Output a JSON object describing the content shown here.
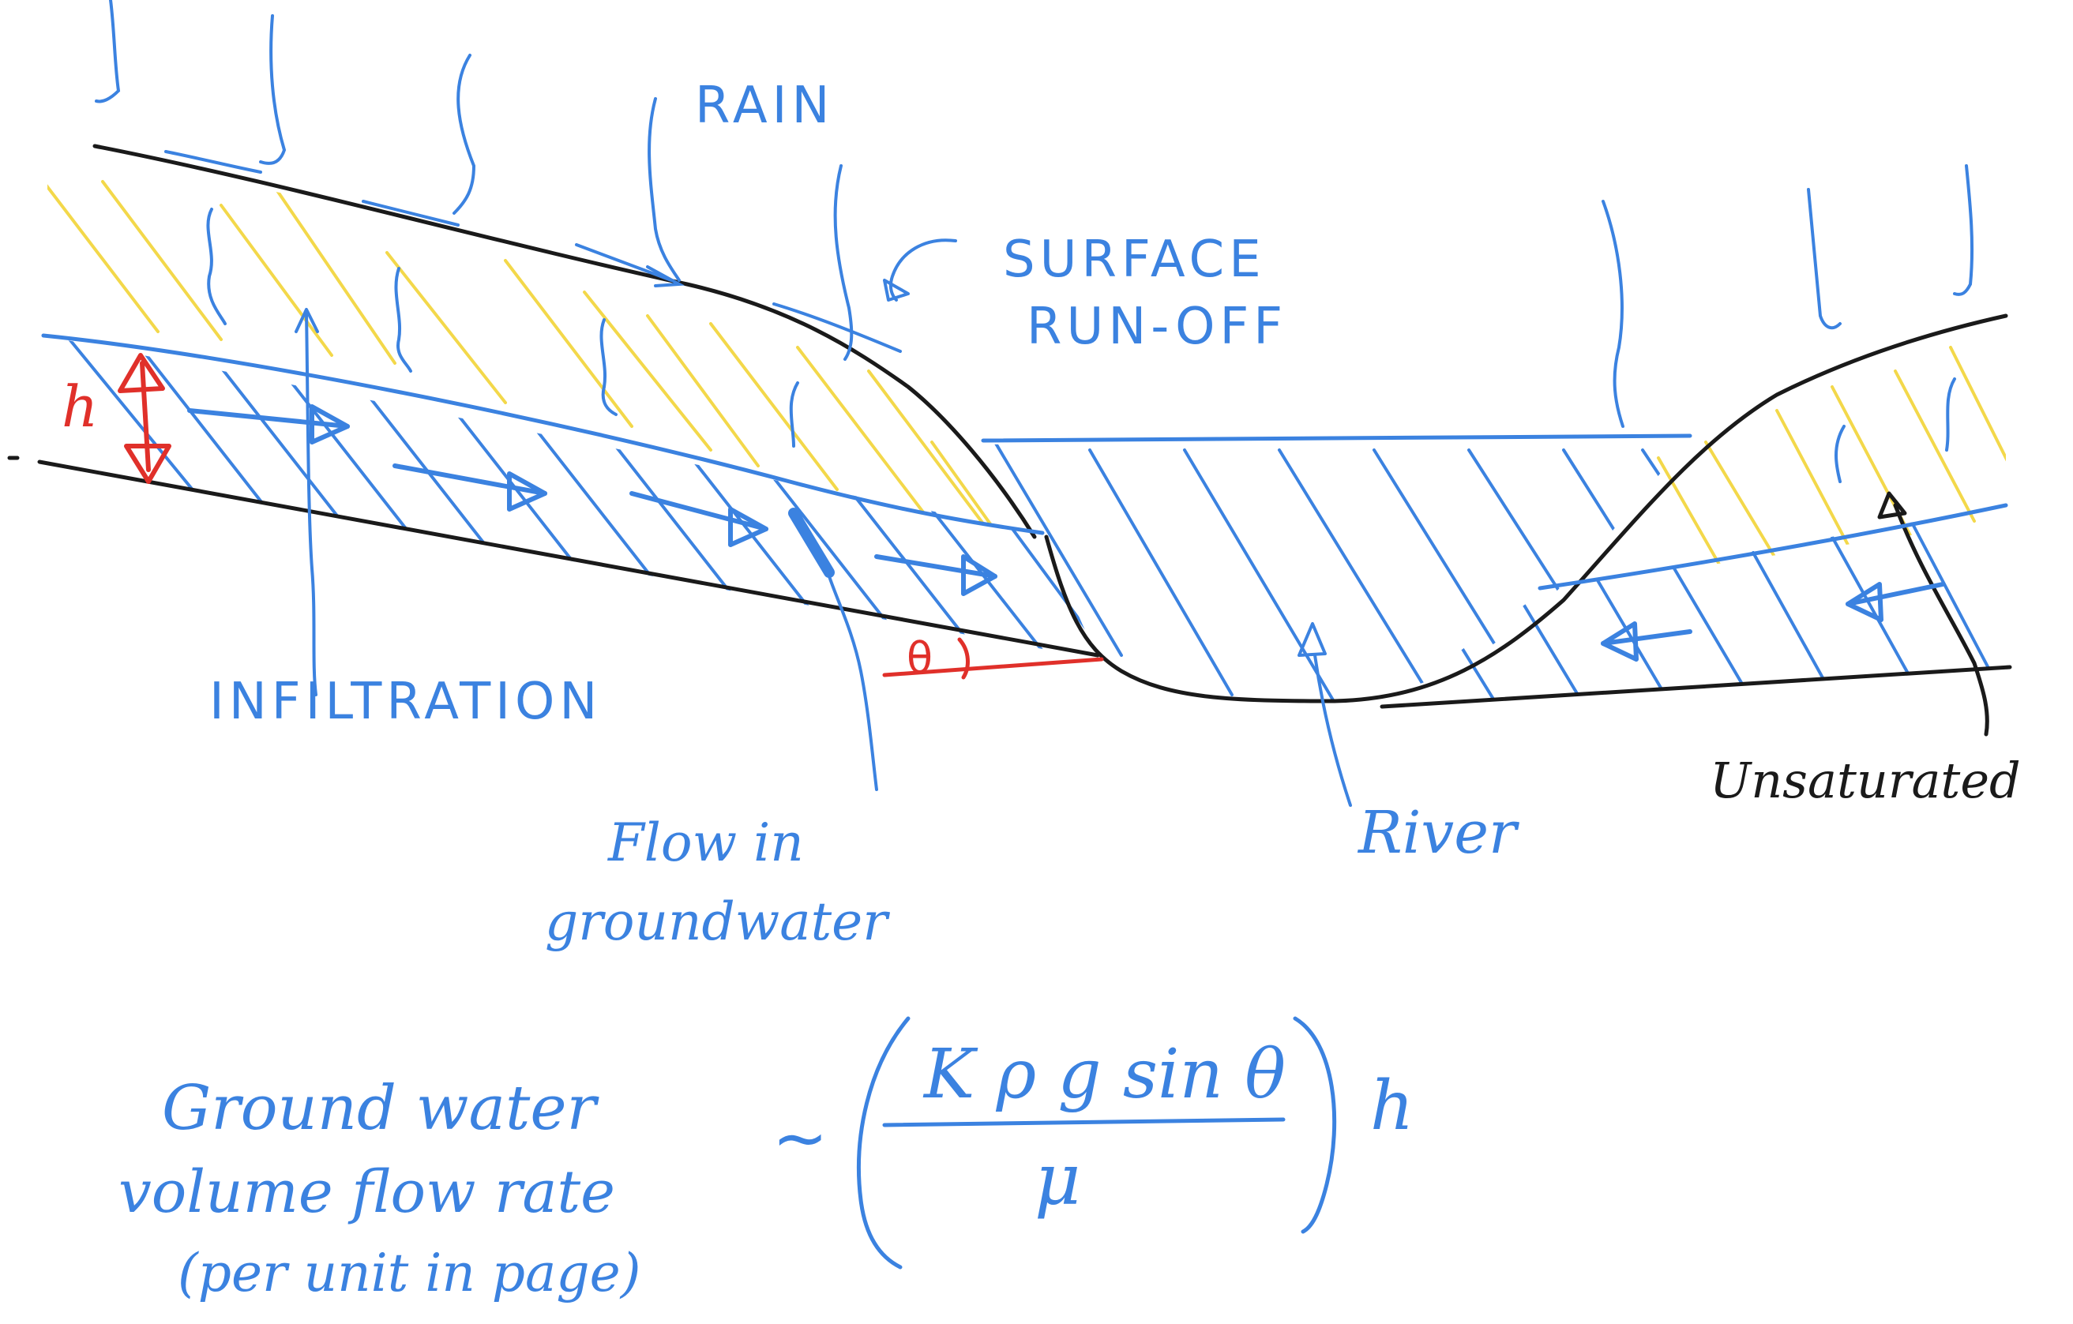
{
  "labels": {
    "rain": "RAIN",
    "surface_runoff_line1": "SURFACE",
    "surface_runoff_line2": "RUN-OFF",
    "infiltration": "INFILTRATION",
    "flow_line1": "Flow in",
    "flow_line2": "groundwater",
    "river": "River",
    "unsaturated": "Unsaturated",
    "h": "h",
    "theta": "θ"
  },
  "equation": {
    "lhs_line1": "Ground water",
    "lhs_line2": "volume flow rate",
    "lhs_line3": "(per unit in page)",
    "relation": "~",
    "numerator": "K ρ g sin θ",
    "denominator": "μ",
    "factor": "h"
  },
  "colors": {
    "ink_black": "#1a1a1a",
    "ink_blue": "#3b82e0",
    "ink_red": "#e0302a",
    "ink_yellow": "#f3d84a"
  }
}
